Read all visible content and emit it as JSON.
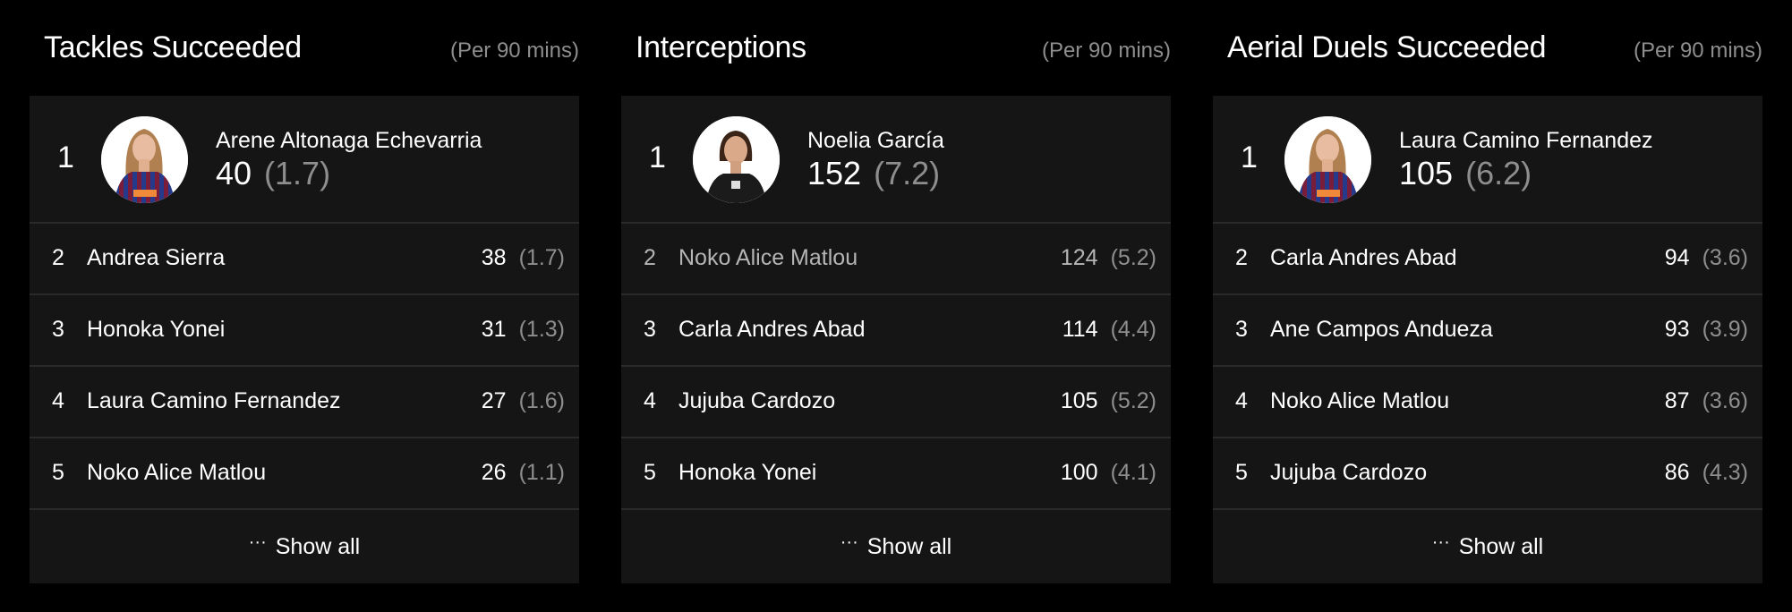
{
  "colors": {
    "background": "#000000",
    "card": "#151515",
    "muted": "#8e8e8e"
  },
  "panels": [
    {
      "title": "Tackles Succeeded",
      "per": "(Per 90 mins)",
      "show_all": "Show all",
      "more_icon": "ellipsis-icon",
      "leader": {
        "rank": "1",
        "name": "Arene Altonaga Echevarria",
        "value": "40",
        "avg": "(1.7)",
        "kit": "striped"
      },
      "rows": [
        {
          "rank": "2",
          "name": "Andrea Sierra",
          "value": "38",
          "avg": "(1.7)"
        },
        {
          "rank": "3",
          "name": "Honoka Yonei",
          "value": "31",
          "avg": "(1.3)"
        },
        {
          "rank": "4",
          "name": "Laura Camino Fernandez",
          "value": "27",
          "avg": "(1.6)"
        },
        {
          "rank": "5",
          "name": "Noko Alice Matlou",
          "value": "26",
          "avg": "(1.1)"
        }
      ]
    },
    {
      "title": "Interceptions",
      "per": "(Per 90 mins)",
      "show_all": "Show all",
      "more_icon": "ellipsis-icon",
      "leader": {
        "rank": "1",
        "name": "Noelia García",
        "value": "152",
        "avg": "(7.2)",
        "kit": "black"
      },
      "rows": [
        {
          "rank": "2",
          "name": "Noko Alice Matlou",
          "value": "124",
          "avg": "(5.2)",
          "dimmed": true
        },
        {
          "rank": "3",
          "name": "Carla Andres Abad",
          "value": "114",
          "avg": "(4.4)"
        },
        {
          "rank": "4",
          "name": "Jujuba Cardozo",
          "value": "105",
          "avg": "(5.2)"
        },
        {
          "rank": "5",
          "name": "Honoka Yonei",
          "value": "100",
          "avg": "(4.1)"
        }
      ]
    },
    {
      "title": "Aerial Duels Succeeded",
      "per": "(Per 90 mins)",
      "show_all": "Show all",
      "more_icon": "ellipsis-icon",
      "leader": {
        "rank": "1",
        "name": "Laura Camino Fernandez",
        "value": "105",
        "avg": "(6.2)",
        "kit": "striped"
      },
      "rows": [
        {
          "rank": "2",
          "name": "Carla Andres Abad",
          "value": "94",
          "avg": "(3.6)"
        },
        {
          "rank": "3",
          "name": "Ane Campos Andueza",
          "value": "93",
          "avg": "(3.9)"
        },
        {
          "rank": "4",
          "name": "Noko Alice Matlou",
          "value": "87",
          "avg": "(3.6)"
        },
        {
          "rank": "5",
          "name": "Jujuba Cardozo",
          "value": "86",
          "avg": "(4.3)"
        }
      ]
    }
  ]
}
